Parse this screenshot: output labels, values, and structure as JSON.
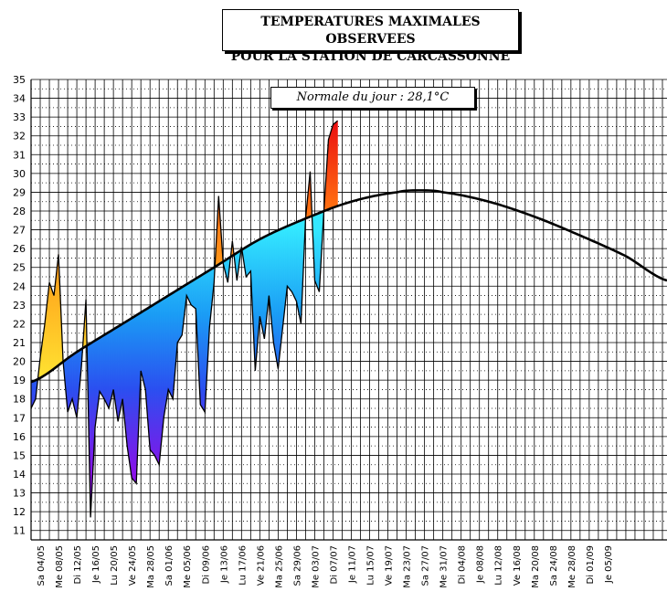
{
  "title": {
    "line1": "TEMPERATURES MAXIMALES OBSERVEES",
    "line2": "POUR LA STATION DE CARCASSONNE"
  },
  "normal_label": "Normale du jour : 28,1°C",
  "chart_data": {
    "type": "area",
    "title": "TEMPERATURES MAXIMALES OBSERVEES POUR LA STATION DE CARCASSONNE",
    "ylim": [
      10.5,
      35
    ],
    "yticks": [
      11,
      12,
      13,
      14,
      15,
      16,
      17,
      18,
      19,
      20,
      21,
      22,
      23,
      24,
      25,
      26,
      27,
      28,
      29,
      30,
      31,
      32,
      33,
      34,
      35
    ],
    "xlim": [
      0,
      139
    ],
    "grid": true,
    "x_tick_labels": [
      "Sa 04/05",
      "Me 08/05",
      "Di 12/05",
      "Je 16/05",
      "Lu 20/05",
      "Ve 24/05",
      "Ma 28/05",
      "Sa 01/06",
      "Me 05/06",
      "Di 09/06",
      "Je 13/06",
      "Lu 17/06",
      "Ve 21/06",
      "Ma 25/06",
      "Sa 29/06",
      "Me 03/07",
      "Di 07/07",
      "Je 11/07",
      "Lu 15/07",
      "Ve 19/07",
      "Ma 23/07",
      "Sa 27/07",
      "Me 31/07",
      "Di 04/08",
      "Je 08/08",
      "Lu 12/08",
      "Ve 16/08",
      "Ma 20/08",
      "Sa 24/08",
      "Me 28/08",
      "Di 01/09",
      "Je 05/09"
    ],
    "x_tick_positions": [
      2,
      6,
      10,
      14,
      18,
      22,
      26,
      30,
      34,
      38,
      42,
      46,
      50,
      54,
      58,
      62,
      66,
      70,
      74,
      78,
      82,
      86,
      90,
      94,
      98,
      102,
      106,
      110,
      114,
      118,
      122,
      126
    ],
    "observed": {
      "x": [
        0,
        1,
        2,
        3,
        4,
        5,
        6,
        7,
        8,
        9,
        10,
        11,
        12,
        13,
        14,
        15,
        16,
        17,
        18,
        19,
        20,
        21,
        22,
        23,
        24,
        25,
        26,
        27,
        28,
        29,
        30,
        31,
        32,
        33,
        34,
        35,
        36,
        37,
        38,
        39,
        40,
        41,
        42,
        43,
        44,
        45,
        46,
        47,
        48,
        49,
        50,
        51,
        52,
        53,
        54,
        55,
        56,
        57,
        58,
        59,
        60,
        61,
        62,
        63,
        64,
        65
      ],
      "values": [
        17.5,
        18.0,
        20.2,
        22.0,
        24.2,
        23.5,
        25.7,
        20.0,
        17.3,
        18.0,
        17.0,
        19.7,
        23.3,
        11.7,
        16.5,
        18.4,
        18.0,
        17.5,
        18.5,
        16.8,
        18.0,
        15.5,
        13.8,
        13.5,
        19.5,
        18.5,
        15.3,
        15.0,
        14.5,
        17.0,
        18.5,
        18.0,
        21.0,
        21.4,
        23.5,
        23.0,
        22.8,
        17.7,
        17.3,
        21.8,
        24.2,
        28.8,
        25.2,
        24.2,
        26.4,
        24.3,
        26.1,
        24.5,
        24.8,
        19.5,
        22.4,
        21.2,
        23.5,
        21.0,
        19.6,
        21.8,
        24.0,
        23.7,
        23.2,
        22.0,
        27.6,
        30.1,
        24.3,
        23.7,
        28.0,
        31.8
      ],
      "plateau": [
        [
          65,
          32.8
        ],
        [
          66,
          32.6
        ],
        [
          67,
          32.8
        ]
      ]
    },
    "normal": {
      "x": [
        0,
        10,
        20,
        30,
        40,
        50,
        60,
        70,
        80,
        85,
        90,
        100,
        110,
        120,
        130,
        139
      ],
      "values": [
        18.9,
        20.5,
        22.0,
        23.5,
        25.0,
        26.5,
        27.6,
        28.5,
        29.0,
        29.1,
        29.0,
        28.5,
        27.7,
        26.7,
        25.6,
        24.3
      ]
    }
  }
}
